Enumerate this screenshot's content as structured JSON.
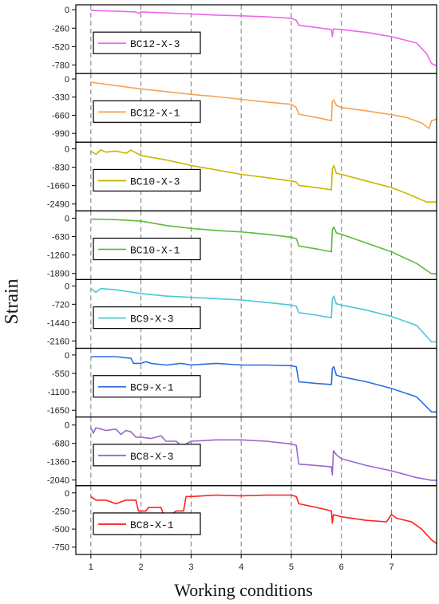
{
  "chart_data": {
    "type": "line",
    "xlabel": "Working conditions",
    "ylabel": "Strain",
    "xlim": [
      0.7,
      7.9
    ],
    "x_ticks": [
      1,
      2,
      3,
      4,
      5,
      6,
      7
    ],
    "gridlines_x": [
      1,
      2,
      3,
      4,
      5,
      6,
      7
    ],
    "panels": [
      {
        "legend": "BC12-X-3",
        "color": "#ee66ee",
        "ylim": [
          -900,
          70
        ],
        "y_ticks": [
          0,
          -260,
          -520,
          -780
        ],
        "points": [
          [
            1,
            -10
          ],
          [
            1.5,
            -20
          ],
          [
            1.9,
            -30
          ],
          [
            1.95,
            -50
          ],
          [
            2,
            -30
          ],
          [
            2.5,
            -45
          ],
          [
            3,
            -60
          ],
          [
            3.5,
            -75
          ],
          [
            4,
            -85
          ],
          [
            4.5,
            -100
          ],
          [
            5.0,
            -120
          ],
          [
            5.1,
            -150
          ],
          [
            5.15,
            -220
          ],
          [
            5.5,
            -250
          ],
          [
            5.8,
            -280
          ],
          [
            5.82,
            -380
          ],
          [
            5.84,
            -270
          ],
          [
            6.0,
            -280
          ],
          [
            6.5,
            -320
          ],
          [
            7.0,
            -380
          ],
          [
            7.5,
            -470
          ],
          [
            7.7,
            -620
          ],
          [
            7.8,
            -760
          ],
          [
            7.9,
            -790
          ]
        ]
      },
      {
        "legend": "BC12-X-1",
        "color": "#f7a350",
        "ylim": [
          -1150,
          100
        ],
        "y_ticks": [
          0,
          -330,
          -660,
          -990
        ],
        "points": [
          [
            1,
            -60
          ],
          [
            1.5,
            -120
          ],
          [
            2,
            -180
          ],
          [
            2.5,
            -230
          ],
          [
            3,
            -280
          ],
          [
            3.5,
            -320
          ],
          [
            4,
            -370
          ],
          [
            4.5,
            -420
          ],
          [
            5.0,
            -460
          ],
          [
            5.1,
            -520
          ],
          [
            5.15,
            -640
          ],
          [
            5.5,
            -700
          ],
          [
            5.8,
            -760
          ],
          [
            5.82,
            -410
          ],
          [
            5.85,
            -380
          ],
          [
            5.9,
            -480
          ],
          [
            6.0,
            -520
          ],
          [
            6.5,
            -580
          ],
          [
            7.0,
            -650
          ],
          [
            7.3,
            -700
          ],
          [
            7.6,
            -800
          ],
          [
            7.75,
            -900
          ],
          [
            7.8,
            -760
          ],
          [
            7.9,
            -730
          ]
        ]
      },
      {
        "legend": "BC10-X-3",
        "color": "#c9b600",
        "ylim": [
          -2800,
          300
        ],
        "y_ticks": [
          0,
          -830,
          -1660,
          -2490
        ],
        "points": [
          [
            1,
            -100
          ],
          [
            1.1,
            -250
          ],
          [
            1.2,
            -50
          ],
          [
            1.3,
            -150
          ],
          [
            1.5,
            -100
          ],
          [
            1.7,
            -200
          ],
          [
            1.8,
            -60
          ],
          [
            2,
            -300
          ],
          [
            2.5,
            -500
          ],
          [
            3,
            -750
          ],
          [
            3.5,
            -950
          ],
          [
            4,
            -1150
          ],
          [
            4.5,
            -1300
          ],
          [
            5.0,
            -1450
          ],
          [
            5.1,
            -1500
          ],
          [
            5.15,
            -1650
          ],
          [
            5.5,
            -1750
          ],
          [
            5.8,
            -1850
          ],
          [
            5.82,
            -900
          ],
          [
            5.85,
            -750
          ],
          [
            5.9,
            -1100
          ],
          [
            6.0,
            -1150
          ],
          [
            6.5,
            -1450
          ],
          [
            7.0,
            -1750
          ],
          [
            7.4,
            -2100
          ],
          [
            7.7,
            -2400
          ],
          [
            7.9,
            -2400
          ]
        ]
      },
      {
        "legend": "BC10-X-1",
        "color": "#5dbb3c",
        "ylim": [
          -2100,
          250
        ],
        "y_ticks": [
          0,
          -630,
          -1260,
          -1890
        ],
        "points": [
          [
            1,
            -30
          ],
          [
            1.5,
            -50
          ],
          [
            2,
            -100
          ],
          [
            2.5,
            -250
          ],
          [
            3,
            -350
          ],
          [
            3.5,
            -420
          ],
          [
            4,
            -470
          ],
          [
            4.5,
            -550
          ],
          [
            5.0,
            -650
          ],
          [
            5.1,
            -700
          ],
          [
            5.15,
            -950
          ],
          [
            5.5,
            -1050
          ],
          [
            5.8,
            -1150
          ],
          [
            5.82,
            -400
          ],
          [
            5.85,
            -300
          ],
          [
            5.9,
            -500
          ],
          [
            6.0,
            -550
          ],
          [
            6.5,
            -850
          ],
          [
            7.0,
            -1150
          ],
          [
            7.5,
            -1550
          ],
          [
            7.8,
            -1900
          ],
          [
            7.9,
            -1900
          ]
        ]
      },
      {
        "legend": "BC9-X-3",
        "color": "#4cc8d8",
        "ylim": [
          -2450,
          250
        ],
        "y_ticks": [
          0,
          -720,
          -1440,
          -2160
        ],
        "points": [
          [
            1,
            -100
          ],
          [
            1.1,
            -250
          ],
          [
            1.2,
            -100
          ],
          [
            1.5,
            -150
          ],
          [
            2,
            -300
          ],
          [
            2.5,
            -400
          ],
          [
            3,
            -450
          ],
          [
            3.5,
            -500
          ],
          [
            4,
            -550
          ],
          [
            4.5,
            -650
          ],
          [
            5.0,
            -750
          ],
          [
            5.1,
            -800
          ],
          [
            5.15,
            -1050
          ],
          [
            5.5,
            -1150
          ],
          [
            5.8,
            -1250
          ],
          [
            5.82,
            -500
          ],
          [
            5.85,
            -400
          ],
          [
            5.9,
            -700
          ],
          [
            6.0,
            -750
          ],
          [
            6.5,
            -950
          ],
          [
            7.0,
            -1200
          ],
          [
            7.5,
            -1550
          ],
          [
            7.8,
            -2200
          ],
          [
            7.9,
            -2200
          ]
        ]
      },
      {
        "legend": "BC9-X-1",
        "color": "#2c6de0",
        "ylim": [
          -1850,
          200
        ],
        "y_ticks": [
          0,
          -550,
          -1100,
          -1650
        ],
        "points": [
          [
            1,
            -50
          ],
          [
            1.5,
            -50
          ],
          [
            1.8,
            -100
          ],
          [
            1.85,
            -250
          ],
          [
            2.0,
            -250
          ],
          [
            2.1,
            -200
          ],
          [
            2.2,
            -250
          ],
          [
            2.5,
            -300
          ],
          [
            2.8,
            -250
          ],
          [
            3,
            -300
          ],
          [
            3.5,
            -250
          ],
          [
            4,
            -300
          ],
          [
            4.5,
            -300
          ],
          [
            5.0,
            -320
          ],
          [
            5.1,
            -350
          ],
          [
            5.15,
            -800
          ],
          [
            5.5,
            -850
          ],
          [
            5.8,
            -880
          ],
          [
            5.82,
            -400
          ],
          [
            5.85,
            -350
          ],
          [
            5.9,
            -600
          ],
          [
            6.0,
            -650
          ],
          [
            6.5,
            -800
          ],
          [
            7.0,
            -1000
          ],
          [
            7.5,
            -1250
          ],
          [
            7.8,
            -1700
          ],
          [
            7.9,
            -1700
          ]
        ]
      },
      {
        "legend": "BC8-X-3",
        "color": "#9966cc",
        "ylim": [
          -2250,
          300
        ],
        "y_ticks": [
          0,
          -680,
          -1360,
          -2040
        ],
        "points": [
          [
            1,
            -100
          ],
          [
            1.05,
            -300
          ],
          [
            1.1,
            -100
          ],
          [
            1.3,
            -200
          ],
          [
            1.5,
            -150
          ],
          [
            1.6,
            -350
          ],
          [
            1.7,
            -200
          ],
          [
            1.8,
            -250
          ],
          [
            1.9,
            -450
          ],
          [
            2.0,
            -450
          ],
          [
            2.2,
            -500
          ],
          [
            2.4,
            -400
          ],
          [
            2.5,
            -600
          ],
          [
            2.7,
            -600
          ],
          [
            2.8,
            -750
          ],
          [
            2.9,
            -700
          ],
          [
            3,
            -600
          ],
          [
            3.5,
            -550
          ],
          [
            4,
            -550
          ],
          [
            4.5,
            -600
          ],
          [
            5.0,
            -700
          ],
          [
            5.1,
            -750
          ],
          [
            5.15,
            -1450
          ],
          [
            5.5,
            -1500
          ],
          [
            5.8,
            -1550
          ],
          [
            5.82,
            -1850
          ],
          [
            5.84,
            -950
          ],
          [
            5.9,
            -1100
          ],
          [
            6.0,
            -1250
          ],
          [
            6.5,
            -1500
          ],
          [
            7.0,
            -1700
          ],
          [
            7.5,
            -1950
          ],
          [
            7.8,
            -2050
          ],
          [
            7.9,
            -2050
          ]
        ]
      },
      {
        "legend": "BC8-X-1",
        "color": "#ff2020",
        "ylim": [
          -850,
          100
        ],
        "y_ticks": [
          0,
          -250,
          -500,
          -750
        ],
        "points": [
          [
            1,
            -50
          ],
          [
            1.1,
            -100
          ],
          [
            1.3,
            -100
          ],
          [
            1.5,
            -150
          ],
          [
            1.7,
            -100
          ],
          [
            1.9,
            -100
          ],
          [
            1.95,
            -250
          ],
          [
            2.1,
            -250
          ],
          [
            2.15,
            -200
          ],
          [
            2.4,
            -200
          ],
          [
            2.45,
            -300
          ],
          [
            2.6,
            -300
          ],
          [
            2.7,
            -250
          ],
          [
            2.85,
            -250
          ],
          [
            2.9,
            -50
          ],
          [
            3.0,
            -50
          ],
          [
            3.5,
            -30
          ],
          [
            4,
            -40
          ],
          [
            4.5,
            -30
          ],
          [
            5.0,
            -30
          ],
          [
            5.1,
            -50
          ],
          [
            5.15,
            -150
          ],
          [
            5.5,
            -200
          ],
          [
            5.8,
            -250
          ],
          [
            5.82,
            -420
          ],
          [
            5.84,
            -300
          ],
          [
            6.0,
            -330
          ],
          [
            6.5,
            -380
          ],
          [
            6.9,
            -400
          ],
          [
            7.0,
            -300
          ],
          [
            7.1,
            -350
          ],
          [
            7.4,
            -400
          ],
          [
            7.6,
            -500
          ],
          [
            7.8,
            -650
          ],
          [
            7.9,
            -700
          ]
        ]
      }
    ]
  }
}
